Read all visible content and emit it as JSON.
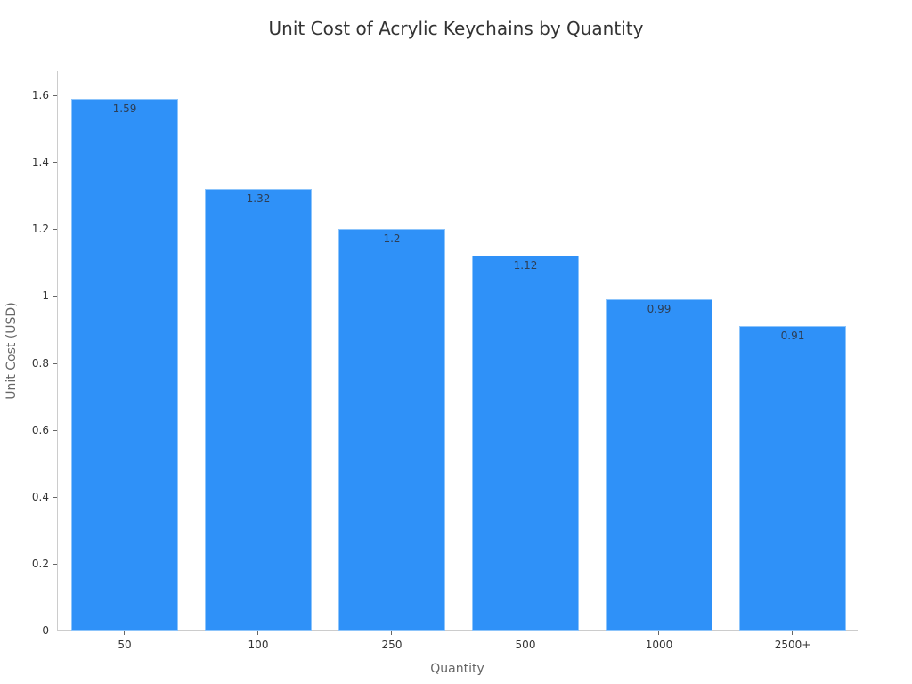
{
  "chart_data": {
    "type": "bar",
    "title": "Unit Cost of Acrylic Keychains by Quantity",
    "xlabel": "Quantity",
    "ylabel": "Unit Cost (USD)",
    "categories": [
      "50",
      "100",
      "250",
      "500",
      "1000",
      "2500+"
    ],
    "values": [
      1.59,
      1.32,
      1.2,
      1.12,
      0.99,
      0.91
    ],
    "data_labels": [
      "1.59",
      "1.32",
      "1.2",
      "1.12",
      "0.99",
      "0.91"
    ],
    "ylim": [
      0,
      1.67
    ],
    "yticks": [
      "0",
      "0.2",
      "0.4",
      "0.6",
      "0.8",
      "1",
      "1.2",
      "1.4",
      "1.6"
    ],
    "grid": false,
    "legend": null,
    "bar_color": "#2f91f8"
  }
}
